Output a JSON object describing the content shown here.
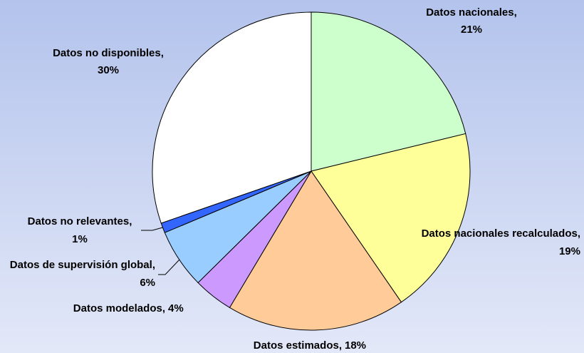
{
  "chart_data": {
    "type": "pie",
    "categories": [
      "Datos nacionales,",
      "Datos nacionales recalculados,",
      "Datos estimados,",
      "Datos modelados,",
      "Datos de supervisión global,",
      "Datos no relevantes,",
      "Datos no disponibles,"
    ],
    "values": [
      21,
      19,
      18,
      4,
      6,
      1,
      30
    ],
    "value_labels": [
      "21%",
      "19%",
      "18%",
      "4%",
      "6%",
      "1%",
      "30%"
    ],
    "colors": [
      "#ccffcc",
      "#ffff99",
      "#ffcc99",
      "#cc99ff",
      "#99ccff",
      "#3366ff",
      "#ffffff"
    ]
  }
}
